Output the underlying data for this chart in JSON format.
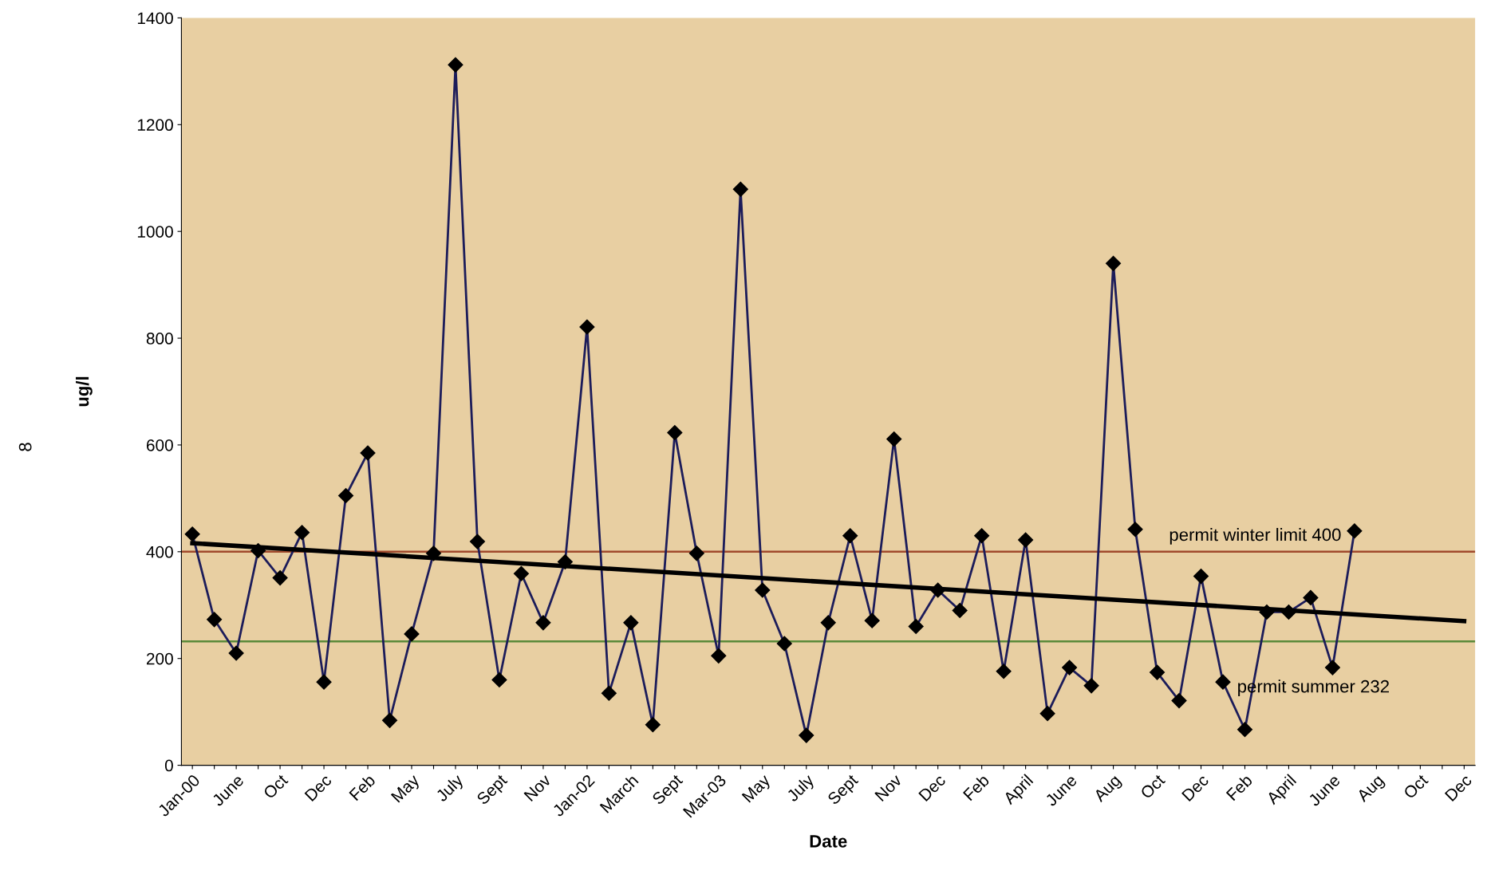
{
  "chart_data": {
    "type": "line",
    "xlabel": "Date",
    "ylabel": "ug/l",
    "categories": [
      "Jan-00",
      null,
      "June",
      null,
      "Oct",
      null,
      "Dec",
      null,
      "Feb",
      null,
      "May",
      null,
      "July",
      null,
      "Sept",
      null,
      "Nov",
      null,
      "Jan-02",
      null,
      "March",
      null,
      "Sept",
      null,
      "Mar-03",
      null,
      "May",
      null,
      "July",
      null,
      "Sept",
      null,
      "Nov",
      null,
      "Dec",
      null,
      "Feb",
      null,
      "April",
      null,
      "June",
      null,
      "Aug",
      null,
      "Oct",
      null,
      "Dec",
      null,
      "Feb",
      null,
      "April",
      null,
      "June",
      null,
      "Aug",
      null,
      "Oct",
      null,
      "Dec"
    ],
    "series": [
      {
        "color": "#1c1c5a",
        "marker": "diamond",
        "values": [
          433,
          273,
          210,
          402,
          351,
          436,
          156,
          505,
          585,
          84,
          246,
          397,
          1312,
          419,
          160,
          359,
          267,
          381,
          821,
          135,
          267,
          76,
          623,
          397,
          205,
          1079,
          328,
          228,
          56,
          267,
          430,
          271,
          611,
          260,
          328,
          290,
          430,
          176,
          422,
          97,
          183,
          149,
          940,
          442,
          174,
          121,
          354,
          156,
          67,
          287,
          287,
          314,
          183,
          439,
          null,
          null,
          null,
          null,
          null
        ]
      },
      {
        "color": "#000000",
        "marker": "none",
        "values": [
          416,
          null,
          null,
          null,
          null,
          null,
          null,
          null,
          null,
          null,
          null,
          null,
          null,
          null,
          null,
          null,
          null,
          null,
          null,
          null,
          null,
          null,
          null,
          null,
          null,
          null,
          null,
          null,
          null,
          null,
          null,
          null,
          null,
          null,
          null,
          null,
          null,
          null,
          null,
          null,
          null,
          null,
          null,
          null,
          null,
          null,
          null,
          null,
          null,
          null,
          null,
          null,
          null,
          null,
          null,
          null,
          null,
          null,
          270
        ]
      }
    ],
    "ylim": [
      0,
      1400
    ],
    "yticks": [
      0,
      200,
      400,
      600,
      800,
      1000,
      1200,
      1400
    ],
    "grid": false,
    "legend": false,
    "line_style": "solid",
    "ref_lines": [
      {
        "axis": "y",
        "value": 400,
        "label": "permit winter limit 400",
        "color": "#a04a2c"
      },
      {
        "axis": "y",
        "value": 232,
        "label": "permit summer 232",
        "color": "#5a8a3a"
      }
    ],
    "annotations": [
      "8"
    ]
  }
}
